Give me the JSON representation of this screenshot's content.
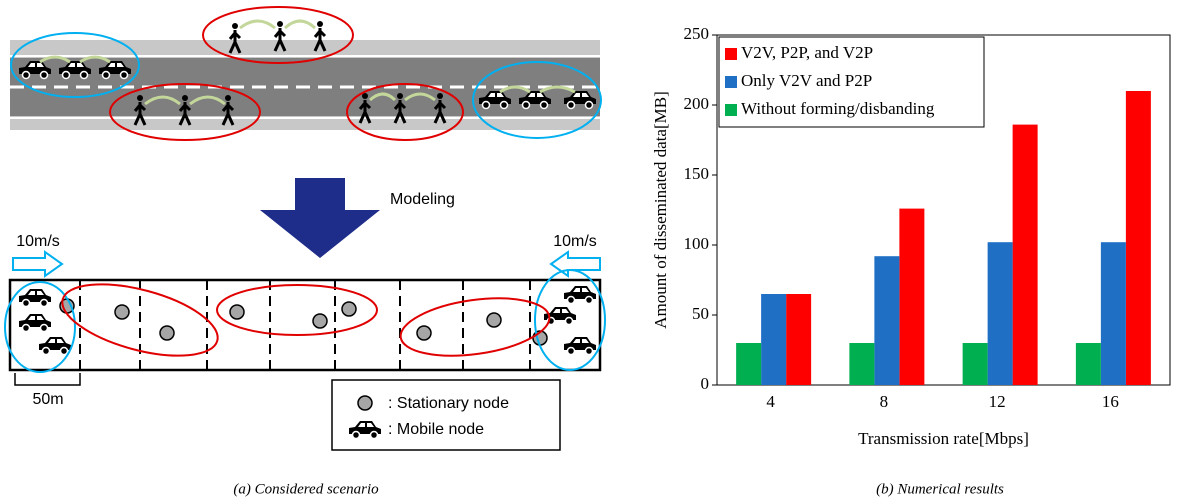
{
  "chart_data": {
    "type": "bar",
    "x_label": "Transmission rate[Mbps]",
    "y_label": "Amount of disseminated data[MB]",
    "categories": [
      "4",
      "8",
      "12",
      "16"
    ],
    "series": [
      {
        "name": "V2V, P2P, and V2P",
        "color": "#ff0000",
        "values": [
          65,
          126,
          186,
          210
        ]
      },
      {
        "name": "Only V2V and P2P",
        "color": "#1f6fc5",
        "values": [
          65,
          92,
          102,
          102
        ]
      },
      {
        "name": "Without forming/disbanding",
        "color": "#00b050",
        "values": [
          30,
          30,
          30,
          30
        ]
      }
    ],
    "ylim": [
      0,
      250
    ],
    "yticks": [
      0,
      50,
      100,
      150,
      200,
      250
    ],
    "grid": false,
    "legend": "top-left"
  },
  "scenario": {
    "modeling": "Modeling",
    "speed_left": "10m/s",
    "speed_right": "10m/s",
    "distance": "50m",
    "legend": [
      ": Stationary node",
      ": Mobile node"
    ]
  },
  "captions": [
    "(a) Considered scenario",
    "(b) Numerical results"
  ]
}
